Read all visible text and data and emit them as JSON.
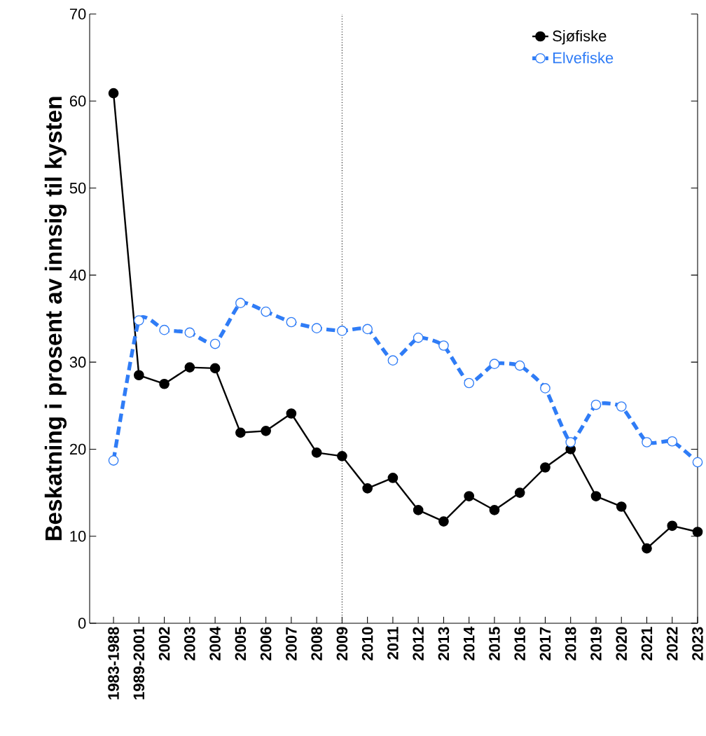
{
  "chart_data": {
    "type": "line",
    "ylabel": "Beskatning i prosent av innsig til kysten",
    "categories": [
      "1983-1988",
      "1989-2001",
      "2002",
      "2003",
      "2004",
      "2005",
      "2006",
      "2007",
      "2008",
      "2009",
      "2010",
      "2011",
      "2012",
      "2013",
      "2014",
      "2015",
      "2016",
      "2017",
      "2018",
      "2019",
      "2020",
      "2021",
      "2022",
      "2023"
    ],
    "series": [
      {
        "name": "Sjøfiske",
        "color": "#000000",
        "line_style": "solid",
        "values": [
          60.9,
          28.5,
          27.5,
          29.4,
          29.3,
          21.9,
          22.1,
          24.1,
          19.6,
          19.2,
          15.5,
          16.7,
          13.0,
          11.7,
          14.6,
          13.0,
          15.0,
          17.9,
          20.0,
          14.6,
          13.4,
          8.6,
          11.2,
          10.5
        ]
      },
      {
        "name": "Elvefiske",
        "color": "#2f7cf6",
        "line_style": "dashed",
        "values": [
          18.7,
          34.8,
          33.7,
          33.4,
          32.1,
          36.8,
          35.8,
          34.6,
          33.9,
          33.6,
          33.8,
          30.2,
          32.8,
          31.9,
          27.6,
          29.8,
          29.6,
          27.0,
          20.8,
          25.1,
          24.9,
          20.8,
          20.9,
          18.5
        ]
      }
    ],
    "ylim": [
      0,
      70
    ],
    "yticks": [
      0,
      10,
      20,
      30,
      40,
      50,
      60,
      70
    ],
    "marker": "circle",
    "legend": "top right",
    "grid": false,
    "ref_lines": [
      {
        "axis": "x",
        "value": "2009",
        "line_style": "dotted"
      }
    ]
  }
}
